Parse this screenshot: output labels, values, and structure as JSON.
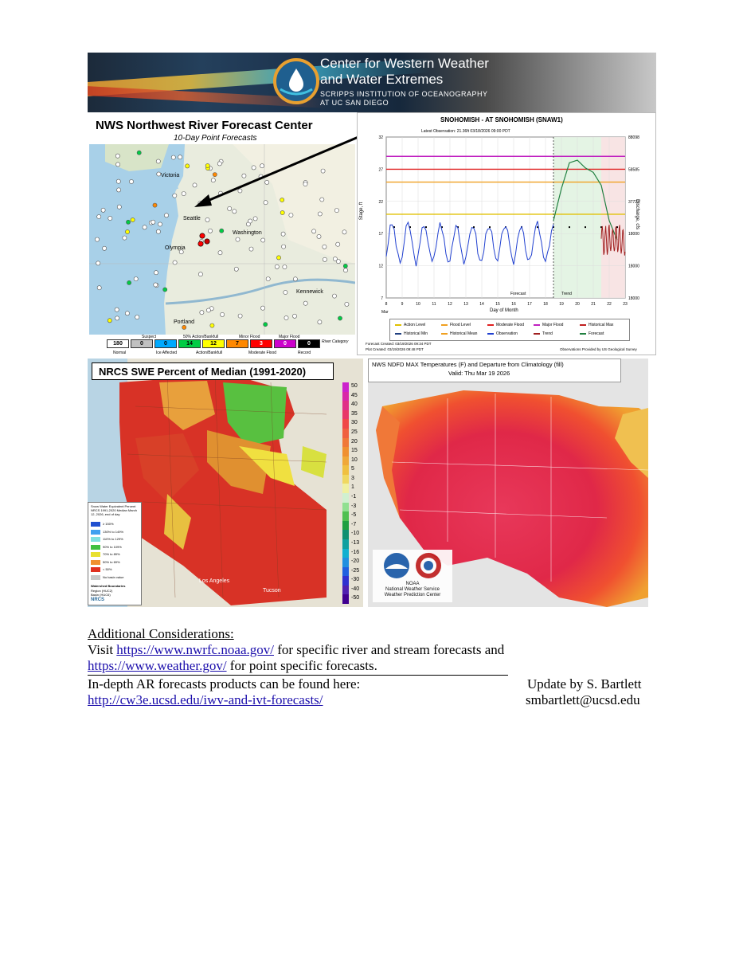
{
  "banner": {
    "title_line1": "Center for Western Weather",
    "title_line2": "and Water Extremes",
    "subtitle_line1": "SCRIPPS INSTITUTION OF OCEANOGRAPHY",
    "subtitle_line2": "AT UC SAN DIEGO"
  },
  "nwrfc": {
    "title": "NWS Northwest River Forecast Center",
    "subtitle": "10-Day Point Forecasts",
    "places": [
      "Victoria",
      "Seattle",
      "Washington",
      "Olympia",
      "Portland",
      "Kennewick"
    ],
    "legend_headers": [
      "Suspect",
      "50% Action/Bankfull",
      "Minor Flood",
      "Major Flood",
      "River Category"
    ],
    "legend_counts": [
      "180",
      "0",
      "0",
      "14",
      "12",
      "7",
      "3",
      "0",
      "0"
    ],
    "legend_colors": [
      "#ffffff",
      "#c0c0c0",
      "#00aaff",
      "#00cc44",
      "#ffff00",
      "#ff8800",
      "#ff0000",
      "#cc00cc",
      "#000000"
    ],
    "legend_footer": [
      "Normal",
      "Ice Affected",
      "Action/Bankfull",
      "Moderate Flood",
      "Record"
    ]
  },
  "hydro": {
    "title": "SNOHOMISH - AT SNOHOMISH (SNAW1)",
    "latest_obs": "Latest Observation: 21.36ft 03/18/2026 09:00 PDT",
    "y_left_label": "Stage, ft",
    "y_right_label": "Discharge, cfs",
    "x_label": "Day of Month",
    "month": "Mar",
    "forecast_label": "Forecast",
    "trend_label": "Trend",
    "created1": "Forecast Created: 03/19/2026 09:34 PDT",
    "created2": "Plot Created: 03/19/2026 09:48 PDT",
    "provider": "Observations Provided by US Geological Survey",
    "legend": [
      "Action Level",
      "Flood Level",
      "Moderate Flood",
      "Major Flood",
      "Historical Max",
      "Historical Min",
      "Historical Mean",
      "Observation",
      "Trend",
      "Forecast"
    ]
  },
  "swe": {
    "title": "NRCS SWE Percent of Median (1991-2020)",
    "legend_title": "Snow Water Equivalent Percent NRCS 1991-2020 Median March 12, 2026, end of day",
    "legend_items": [
      "≥ 150%",
      "130% to 149%",
      "110% to 129%",
      "90% to 109%",
      "70% to 89%",
      "50% to 69%",
      "< 50%",
      "No basin value"
    ],
    "legend_colors": [
      "#2050d0",
      "#40a0f0",
      "#80e0e0",
      "#40c040",
      "#e8e030",
      "#f09030",
      "#e03020",
      "#c8c8c8"
    ],
    "boundaries_title": "Watershed Boundaries",
    "boundaries": [
      "Region (HUC2)",
      "Basin (HUC6)"
    ],
    "places": [
      "Los Angeles",
      "Tucson"
    ],
    "agency": "NRCS"
  },
  "temp": {
    "title_line1": "NWS NDFD MAX Temperatures (F) and Departure from Climatology (fill)",
    "title_line2": "Valid: Thu Mar 19 2026",
    "scale": [
      "50",
      "45",
      "40",
      "35",
      "30",
      "25",
      "20",
      "15",
      "10",
      "5",
      "3",
      "1",
      "-1",
      "-3",
      "-5",
      "-7",
      "-10",
      "-13",
      "-16",
      "-20",
      "-25",
      "-30",
      "-40",
      "-50"
    ],
    "scale_colors": [
      "#cc22cc",
      "#d828a8",
      "#e03088",
      "#e83868",
      "#f04848",
      "#f06040",
      "#f07838",
      "#f09030",
      "#f0a838",
      "#f0c040",
      "#f0d860",
      "#f0f0a0",
      "#d0f0d0",
      "#90e090",
      "#50c050",
      "#20a040",
      "#109070",
      "#10a0a0",
      "#10b0d0",
      "#2090e0",
      "#2060e0",
      "#3030d0",
      "#5020b0",
      "#400090"
    ],
    "noaa_label1": "NOAA",
    "noaa_label2": "National Weather Service",
    "noaa_label3": "Weather Prediction Center"
  },
  "footer": {
    "heading": "Additional Considerations:",
    "visit": "Visit ",
    "link1": "https://www.nwrfc.noaa.gov/",
    "after_link1": " for specific river and stream forecasts and",
    "link2": "https://www.weather.gov/",
    "after_link2": " for point specific forecasts.",
    "indepth": "In-depth AR forecasts products can be found here:",
    "link3": "http://cw3e.ucsd.edu/iwv-and-ivt-forecasts/",
    "update_by": "Update by S. Bartlett",
    "email": "smbartlett@ucsd.edu"
  }
}
